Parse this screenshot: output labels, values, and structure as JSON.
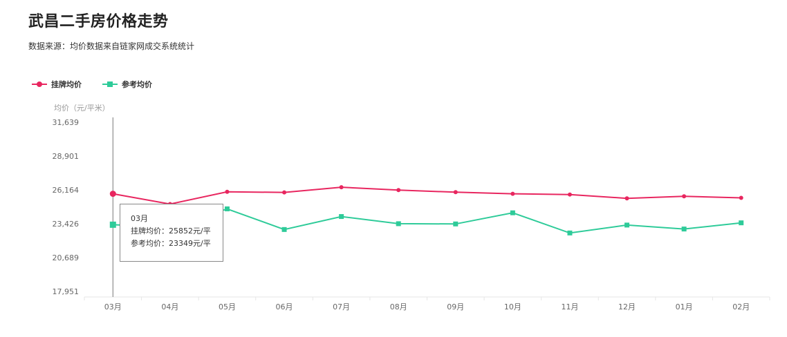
{
  "title": "武昌二手房价格走势",
  "subtitle": "数据来源：均价数据来自链家网成交系统统计",
  "tooltip": {
    "month": "03月",
    "line1": "挂牌均价：25852元/平",
    "line2": "参考均价：23349元/平"
  },
  "chart_data": {
    "type": "line",
    "ylabel": "均价（元/平米）",
    "ylim": [
      17951,
      31639
    ],
    "yticks": [
      "31,639",
      "28,901",
      "26,164",
      "23,426",
      "20,689",
      "17,951"
    ],
    "ytick_values": [
      31639,
      28901,
      26164,
      23426,
      20689,
      17951
    ],
    "categories": [
      "03月",
      "04月",
      "05月",
      "06月",
      "07月",
      "08月",
      "09月",
      "10月",
      "11月",
      "12月",
      "01月",
      "02月"
    ],
    "series": [
      {
        "name": "挂牌均价",
        "color": "#e8265f",
        "marker": "circle",
        "values": [
          25852,
          25020,
          26010,
          25960,
          26380,
          26150,
          25980,
          25850,
          25790,
          25480,
          25650,
          25520
        ]
      },
      {
        "name": "参考均价",
        "color": "#2ecb99",
        "marker": "square",
        "values": [
          23349,
          23150,
          24630,
          22960,
          24010,
          23430,
          23410,
          24310,
          22680,
          23320,
          23000,
          23500
        ]
      }
    ],
    "highlight_index": 0,
    "grid": false,
    "legend_position": "top-left"
  }
}
